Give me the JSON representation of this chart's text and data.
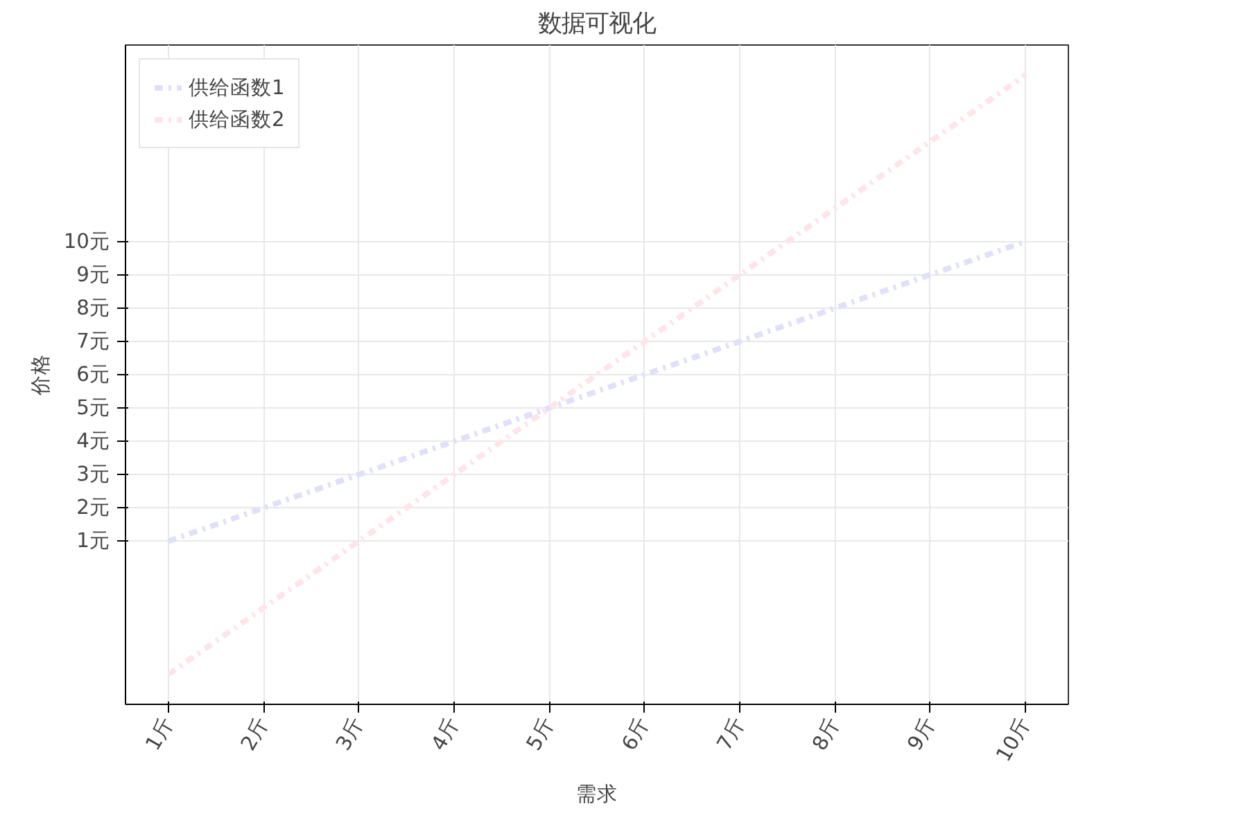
{
  "chart_data": {
    "type": "line",
    "title": "数据可视化",
    "xlabel": "需求",
    "ylabel": "价格",
    "x": [
      1,
      2,
      3,
      4,
      5,
      6,
      7,
      8,
      9,
      10
    ],
    "series": [
      {
        "name": "供给函数1",
        "color": "#e0e0fa",
        "values": [
          1,
          2,
          3,
          4,
          5,
          6,
          7,
          8,
          9,
          10
        ]
      },
      {
        "name": "供给函数2",
        "color": "#ffe4ea",
        "values": [
          -3,
          -1,
          1,
          3,
          5,
          7,
          9,
          11,
          13,
          15
        ]
      }
    ],
    "xlim": [
      0.55,
      10.45
    ],
    "ylim": [
      -3.9,
      15.9
    ],
    "xticks": [
      {
        "value": 1,
        "label": "1斤"
      },
      {
        "value": 2,
        "label": "2斤"
      },
      {
        "value": 3,
        "label": "3斤"
      },
      {
        "value": 4,
        "label": "4斤"
      },
      {
        "value": 5,
        "label": "5斤"
      },
      {
        "value": 6,
        "label": "6斤"
      },
      {
        "value": 7,
        "label": "7斤"
      },
      {
        "value": 8,
        "label": "8斤"
      },
      {
        "value": 9,
        "label": "9斤"
      },
      {
        "value": 10,
        "label": "10斤"
      }
    ],
    "yticks": [
      {
        "value": 1,
        "label": "1元"
      },
      {
        "value": 2,
        "label": "2元"
      },
      {
        "value": 3,
        "label": "3元"
      },
      {
        "value": 4,
        "label": "4元"
      },
      {
        "value": 5,
        "label": "5元"
      },
      {
        "value": 6,
        "label": "6元"
      },
      {
        "value": 7,
        "label": "7元"
      },
      {
        "value": 8,
        "label": "8元"
      },
      {
        "value": 9,
        "label": "9元"
      },
      {
        "value": 10,
        "label": "10元"
      }
    ],
    "grid": true,
    "legend": "top left",
    "line_style": "dashed",
    "marker": "none"
  }
}
